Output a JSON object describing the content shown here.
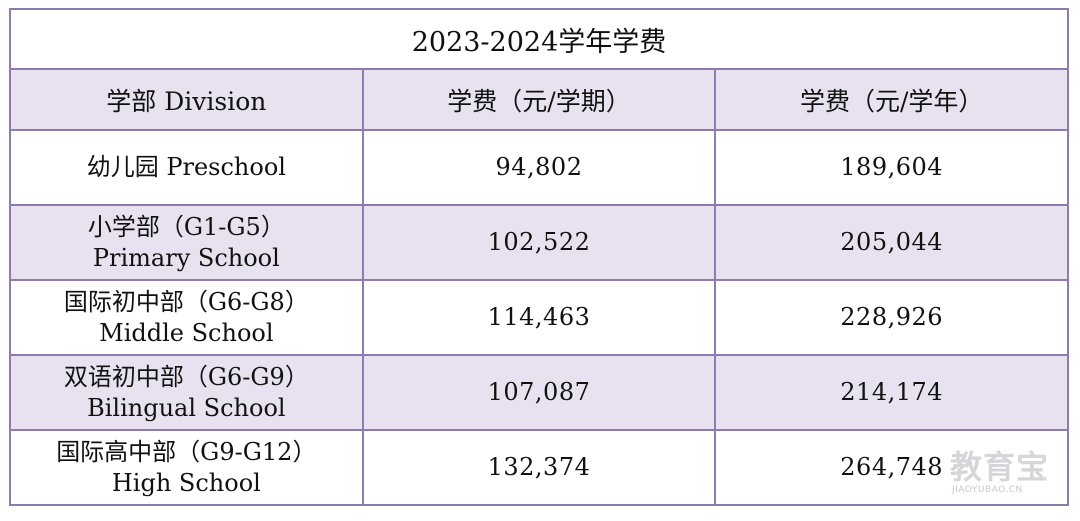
{
  "table": {
    "title": "2023-2024学年学费",
    "headers": [
      "学部 Division",
      "学费（元/学期）",
      "学费（元/学年）"
    ],
    "rows": [
      {
        "division_line1": "幼儿园 Preschool",
        "division_line2": "",
        "per_semester": "94,802",
        "per_year": "189,604"
      },
      {
        "division_line1": "小学部（G1-G5）",
        "division_line2": "Primary School",
        "per_semester": "102,522",
        "per_year": "205,044"
      },
      {
        "division_line1": "国际初中部（G6-G8）",
        "division_line2": "Middle School",
        "per_semester": "114,463",
        "per_year": "228,926"
      },
      {
        "division_line1": "双语初中部（G6-G9）",
        "division_line2": "Bilingual School",
        "per_semester": "107,087",
        "per_year": "214,174"
      },
      {
        "division_line1": "国际高中部（G9-G12）",
        "division_line2": "High School",
        "per_semester": "132,374",
        "per_year": "264,748"
      }
    ]
  },
  "watermark": {
    "text": "教育宝",
    "url_text": "JIAOYUBAO.CN"
  },
  "colors": {
    "border": "#8e7bb0",
    "shade": "#e8e2f0"
  }
}
